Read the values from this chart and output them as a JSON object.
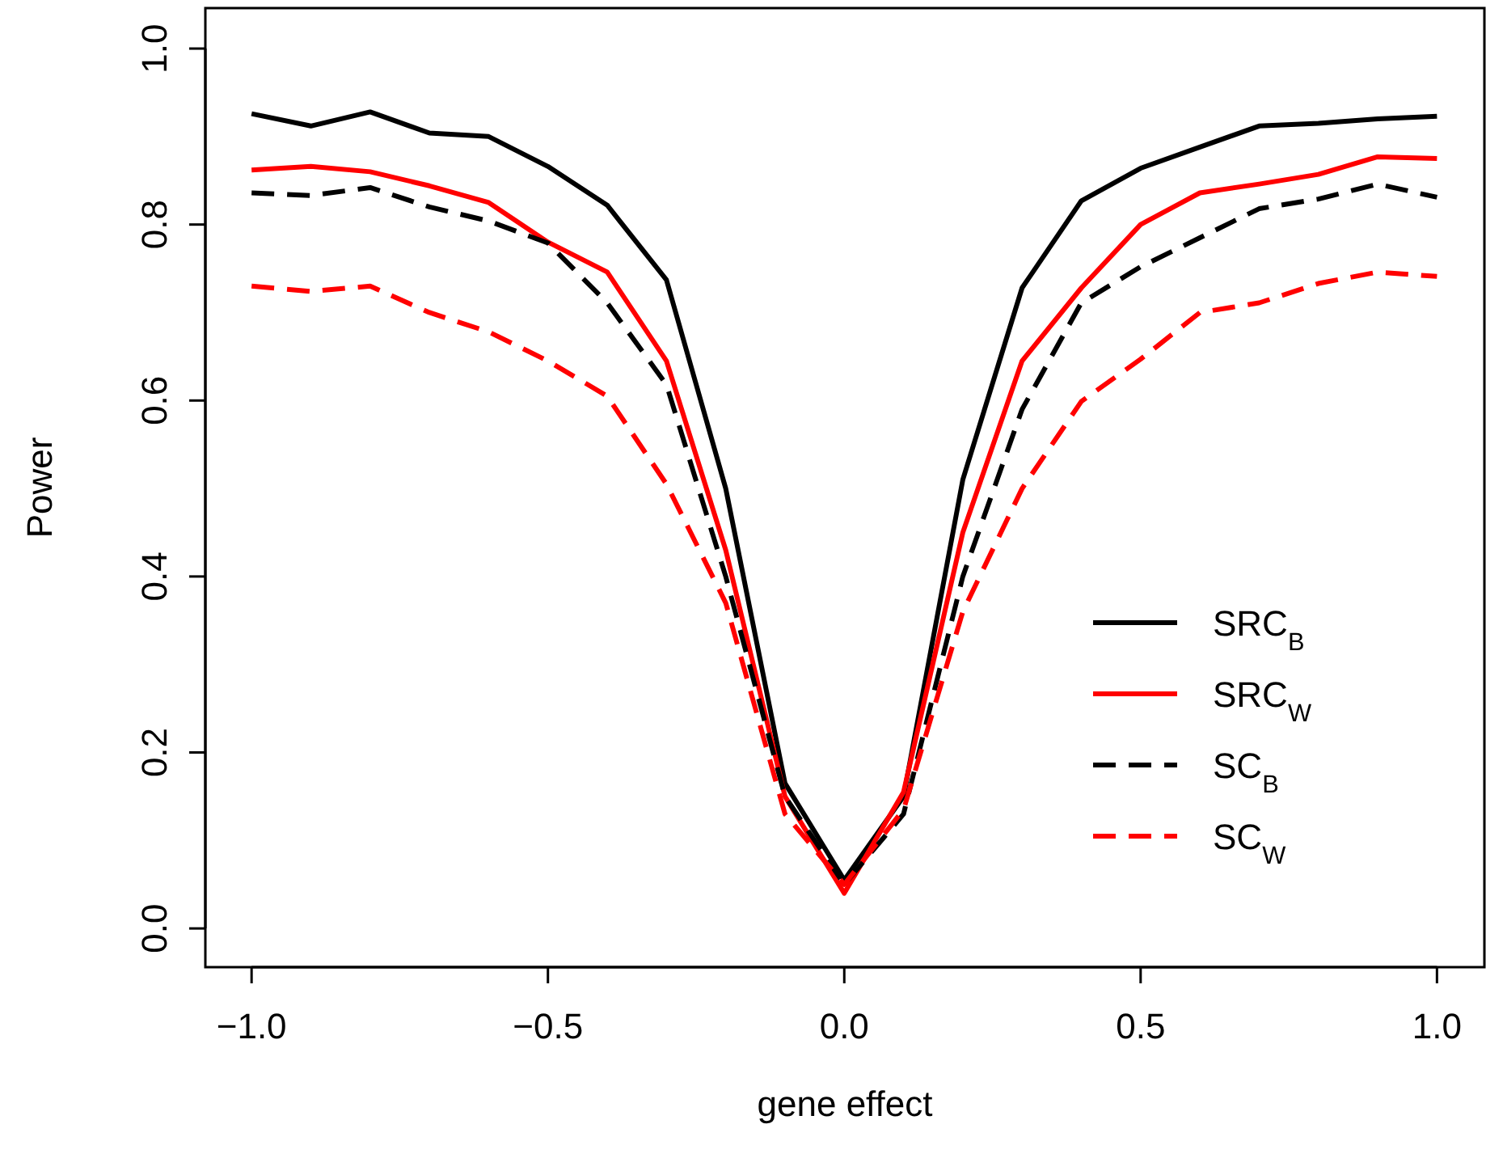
{
  "chart_data": {
    "type": "line",
    "xlabel": "gene effect",
    "ylabel": "Power",
    "x": [
      -1.0,
      -0.9,
      -0.8,
      -0.7,
      -0.6,
      -0.5,
      -0.4,
      -0.3,
      -0.2,
      -0.1,
      0.0,
      0.1,
      0.2,
      0.3,
      0.4,
      0.5,
      0.6,
      0.7,
      0.8,
      0.9,
      1.0
    ],
    "xlim": [
      -1.078,
      1.08
    ],
    "ylim": [
      -0.044,
      1.046
    ],
    "xticks": [
      {
        "value": -1,
        "label": "−1.0"
      },
      {
        "value": -0.5,
        "label": "−0.5"
      },
      {
        "value": 0,
        "label": "0.0"
      },
      {
        "value": 0.5,
        "label": "0.5"
      },
      {
        "value": 1,
        "label": "1.0"
      }
    ],
    "yticks": [
      {
        "value": 0,
        "label": "0.0"
      },
      {
        "value": 0.2,
        "label": "0.2"
      },
      {
        "value": 0.4,
        "label": "0.4"
      },
      {
        "value": 0.6,
        "label": "0.6"
      },
      {
        "value": 0.8,
        "label": "0.8"
      },
      {
        "value": 1,
        "label": "1.0"
      }
    ],
    "grid": false,
    "legend": "right",
    "series": [
      {
        "name": "SRC$_{B}$",
        "color": "#000000",
        "line_style": "solid",
        "values": [
          0.926,
          0.912,
          0.928,
          0.904,
          0.9,
          0.866,
          0.822,
          0.737,
          0.5,
          0.165,
          0.055,
          0.15,
          0.51,
          0.728,
          0.827,
          0.864,
          0.888,
          0.912,
          0.915,
          0.92,
          0.923
        ]
      },
      {
        "name": "SRC$_{W}$",
        "color": "#ff0000",
        "line_style": "solid",
        "values": [
          0.862,
          0.866,
          0.86,
          0.844,
          0.825,
          0.78,
          0.746,
          0.645,
          0.43,
          0.15,
          0.04,
          0.155,
          0.45,
          0.645,
          0.728,
          0.8,
          0.836,
          0.846,
          0.857,
          0.877,
          0.875
        ]
      },
      {
        "name": "SC$_{B}$",
        "color": "#000000",
        "line_style": "dashed",
        "values": [
          0.836,
          0.833,
          0.842,
          0.82,
          0.804,
          0.779,
          0.711,
          0.618,
          0.4,
          0.15,
          0.05,
          0.13,
          0.4,
          0.59,
          0.711,
          0.752,
          0.785,
          0.818,
          0.829,
          0.846,
          0.831
        ]
      },
      {
        "name": "SC$_{W}$",
        "color": "#ff0000",
        "line_style": "dashed",
        "values": [
          0.73,
          0.724,
          0.73,
          0.7,
          0.678,
          0.645,
          0.605,
          0.505,
          0.37,
          0.13,
          0.05,
          0.135,
          0.36,
          0.5,
          0.599,
          0.647,
          0.7,
          0.711,
          0.733,
          0.746,
          0.741
        ]
      }
    ]
  }
}
